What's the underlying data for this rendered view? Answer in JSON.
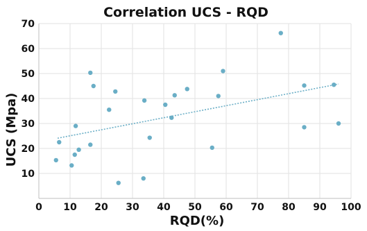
{
  "chart_data": {
    "type": "scatter",
    "title": "Correlation UCS - RQD",
    "xlabel": "RQD(%)",
    "ylabel": "UCS (Mpa)",
    "xlim": [
      0,
      100
    ],
    "ylim": [
      0,
      70
    ],
    "xticks": [
      0,
      10,
      20,
      30,
      40,
      50,
      60,
      70,
      80,
      90,
      100
    ],
    "yticks": [
      10,
      20,
      30,
      40,
      50,
      60,
      70
    ],
    "grid": true,
    "legend": "none",
    "series": [
      {
        "type": "scatter",
        "color": "#6aaec6",
        "points": [
          [
            5.5,
            15.3
          ],
          [
            6.5,
            22.5
          ],
          [
            10.5,
            13.2
          ],
          [
            11.5,
            17.5
          ],
          [
            11.8,
            29.0
          ],
          [
            12.8,
            19.5
          ],
          [
            16.5,
            21.5
          ],
          [
            16.5,
            50.3
          ],
          [
            17.5,
            45.0
          ],
          [
            22.5,
            35.5
          ],
          [
            24.5,
            42.8
          ],
          [
            25.5,
            6.2
          ],
          [
            33.5,
            8.0
          ],
          [
            33.8,
            39.2
          ],
          [
            35.5,
            24.3
          ],
          [
            40.5,
            37.5
          ],
          [
            42.5,
            32.3
          ],
          [
            43.5,
            41.3
          ],
          [
            47.5,
            43.8
          ],
          [
            55.5,
            20.3
          ],
          [
            57.5,
            41.0
          ],
          [
            59.0,
            51.0
          ],
          [
            77.5,
            66.2
          ],
          [
            85.0,
            45.2
          ],
          [
            85.0,
            28.5
          ],
          [
            94.5,
            45.5
          ],
          [
            96.0,
            30.0
          ]
        ]
      },
      {
        "type": "trendline",
        "color": "#6aaec6",
        "points": [
          [
            6,
            24.1
          ],
          [
            96,
            45.8
          ]
        ]
      }
    ]
  }
}
